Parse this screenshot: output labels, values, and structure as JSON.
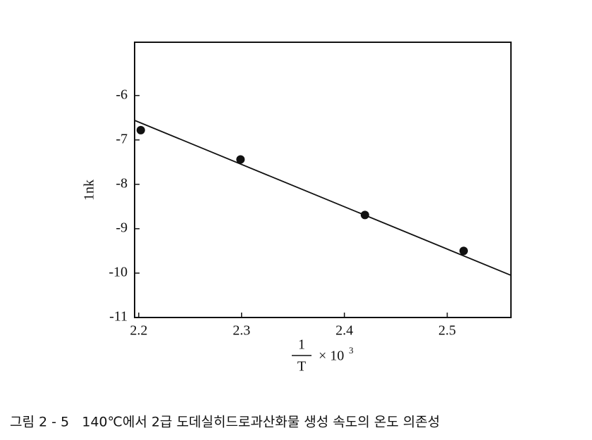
{
  "chart_data": {
    "type": "scatter",
    "ylabel": "1nk",
    "xlabel_numerator": "1",
    "xlabel_denominator": "T",
    "xlabel_factor": "× 10",
    "xlabel_exponent": "3",
    "caption": "그림 2 - 5   140℃에서 2급 도데실히드로과산화물 생성 속도의 온도 의존성",
    "x": [
      2.202,
      2.299,
      2.42,
      2.516
    ],
    "values": [
      -6.78,
      -7.44,
      -8.69,
      -9.5
    ],
    "color": "#111111",
    "fit_line": {
      "x": [
        2.196,
        2.562
      ],
      "y": [
        -6.56,
        -10.05
      ]
    },
    "xlim": [
      2.196,
      2.562
    ],
    "ylim": [
      -11,
      -4.8
    ],
    "xticks": [
      2.2,
      2.3,
      2.4,
      2.5
    ],
    "yticks": [
      -6,
      -7,
      -8,
      -9,
      -10,
      -11
    ]
  }
}
